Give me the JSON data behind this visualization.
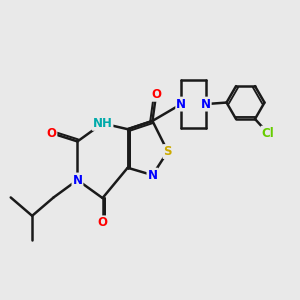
{
  "bg_color": "#e9e9e9",
  "bond_color": "#1a1a1a",
  "bond_width": 1.8,
  "atom_colors": {
    "O": "#ff0000",
    "N": "#0000ff",
    "S": "#ccaa00",
    "Cl": "#66cc00",
    "NH": "#00aaaa",
    "C": "#1a1a1a"
  },
  "font_size": 8.5
}
